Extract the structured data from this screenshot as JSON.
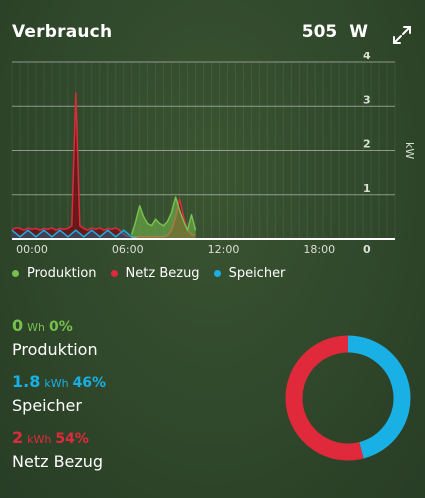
{
  "header": {
    "title": "Verbrauch",
    "power_value": "505",
    "power_unit": "W"
  },
  "icons": {
    "expand": "expand-arrows-icon"
  },
  "colors": {
    "produktion": "#76c04e",
    "netz_bezug": "#e02a3b",
    "speicher": "#19b0e6"
  },
  "legend": [
    {
      "key": "produktion",
      "label": "Produktion"
    },
    {
      "key": "netz_bezug",
      "label": "Netz Bezug"
    },
    {
      "key": "speicher",
      "label": "Speicher"
    }
  ],
  "chart_data": {
    "type": "area",
    "x_ticks": [
      "00:00",
      "06:00",
      "12:00",
      "18:00"
    ],
    "y_ticks": [
      "0",
      "1",
      "2",
      "3",
      "4"
    ],
    "ylabel": "kW",
    "xlim": [
      0,
      24
    ],
    "ylim": [
      0,
      4
    ],
    "grid": true,
    "series": [
      {
        "name": "Netz Bezug",
        "x": [
          0,
          0.25,
          0.5,
          0.75,
          1,
          1.25,
          1.5,
          1.75,
          2,
          2.25,
          2.5,
          2.75,
          3,
          3.25,
          3.5,
          3.75,
          4,
          4.25,
          4.5,
          4.75,
          5,
          5.25,
          5.5,
          5.75,
          6,
          6.25,
          6.5,
          6.75,
          7,
          7.25,
          7.5,
          7.75,
          8,
          8.25,
          8.5,
          8.75,
          9,
          9.25,
          9.5,
          9.75,
          10,
          10.25,
          10.5,
          10.75,
          11,
          11.25,
          11.5
        ],
        "values": [
          0.22,
          0.25,
          0.24,
          0.2,
          0.25,
          0.22,
          0.24,
          0.2,
          0.24,
          0.22,
          0.25,
          0.2,
          0.24,
          0.22,
          0.24,
          0.3,
          3.3,
          0.3,
          0.24,
          0.2,
          0.25,
          0.22,
          0.25,
          0.2,
          0.24,
          0.22,
          0.25,
          0.2,
          0.1,
          0.06,
          0.05,
          0.05,
          0.05,
          0.05,
          0.05,
          0.05,
          0.05,
          0.05,
          0.05,
          0.08,
          0.2,
          0.5,
          0.9,
          0.5,
          0.2,
          0.1,
          0.08
        ]
      },
      {
        "name": "Speicher",
        "x": [
          0,
          0.5,
          1,
          1.5,
          2,
          2.5,
          3,
          3.5,
          4,
          4.5,
          5,
          5.5,
          6,
          6.5,
          7,
          7.5,
          8
        ],
        "values": [
          0.2,
          0.05,
          0.2,
          0.05,
          0.2,
          0.05,
          0.2,
          0.05,
          0.2,
          0.05,
          0.2,
          0.05,
          0.2,
          0.05,
          0.2,
          0.05,
          0.0
        ]
      },
      {
        "name": "Produktion",
        "x": [
          7.5,
          7.75,
          8,
          8.25,
          8.5,
          8.75,
          9,
          9.25,
          9.5,
          9.75,
          10,
          10.25,
          10.5,
          10.75,
          11,
          11.25,
          11.5
        ],
        "values": [
          0.1,
          0.4,
          0.75,
          0.5,
          0.35,
          0.3,
          0.45,
          0.35,
          0.3,
          0.4,
          0.6,
          0.95,
          0.65,
          0.4,
          0.2,
          0.55,
          0.2
        ]
      }
    ]
  },
  "stats": [
    {
      "value": "0",
      "unit": "Wh",
      "percent": "0%",
      "name": "Produktion",
      "color_key": "produktion"
    },
    {
      "value": "1.8",
      "unit": "kWh",
      "percent": "46%",
      "name": "Speicher",
      "color_key": "speicher"
    },
    {
      "value": "2",
      "unit": "kWh",
      "percent": "54%",
      "name": "Netz Bezug",
      "color_key": "netz_bezug"
    }
  ],
  "donut": [
    {
      "name": "Speicher",
      "fraction": 0.46,
      "color_key": "speicher"
    },
    {
      "name": "Netz Bezug",
      "fraction": 0.54,
      "color_key": "netz_bezug"
    }
  ]
}
